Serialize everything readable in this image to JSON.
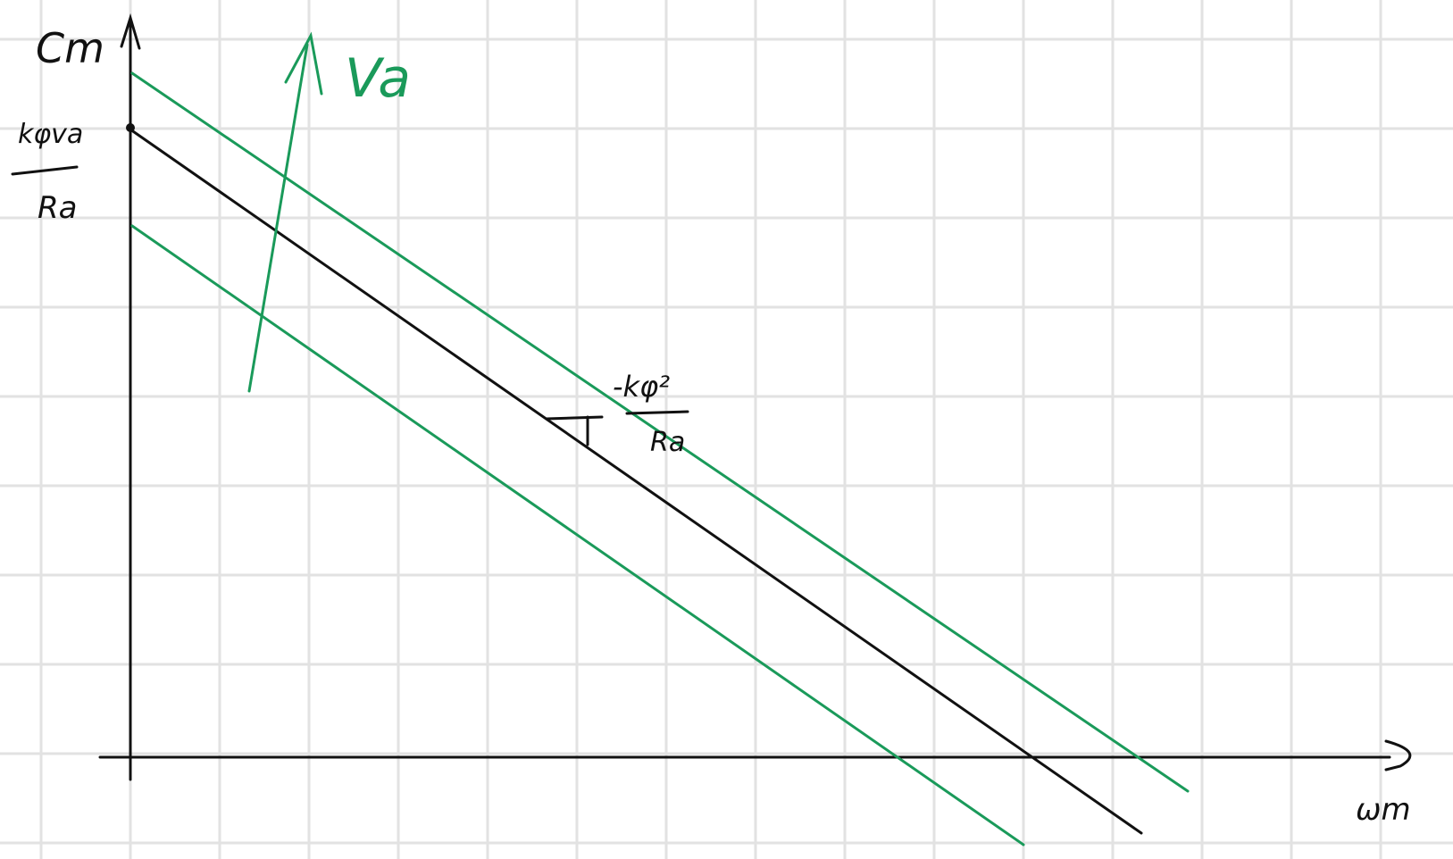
{
  "colors": {
    "background": "#ffffff",
    "grid": "#e2e2e2",
    "ink": "#111111",
    "accent": "#1a9a5a"
  },
  "diagram": {
    "y_axis_label": "Cm",
    "x_axis_label": "ωm",
    "y_intercept_label": {
      "numerator": "kφva",
      "denominator": "Ra"
    },
    "slope_label": {
      "numerator": "-kφ²",
      "denominator": "Ra"
    },
    "arrow_label": "Va"
  }
}
